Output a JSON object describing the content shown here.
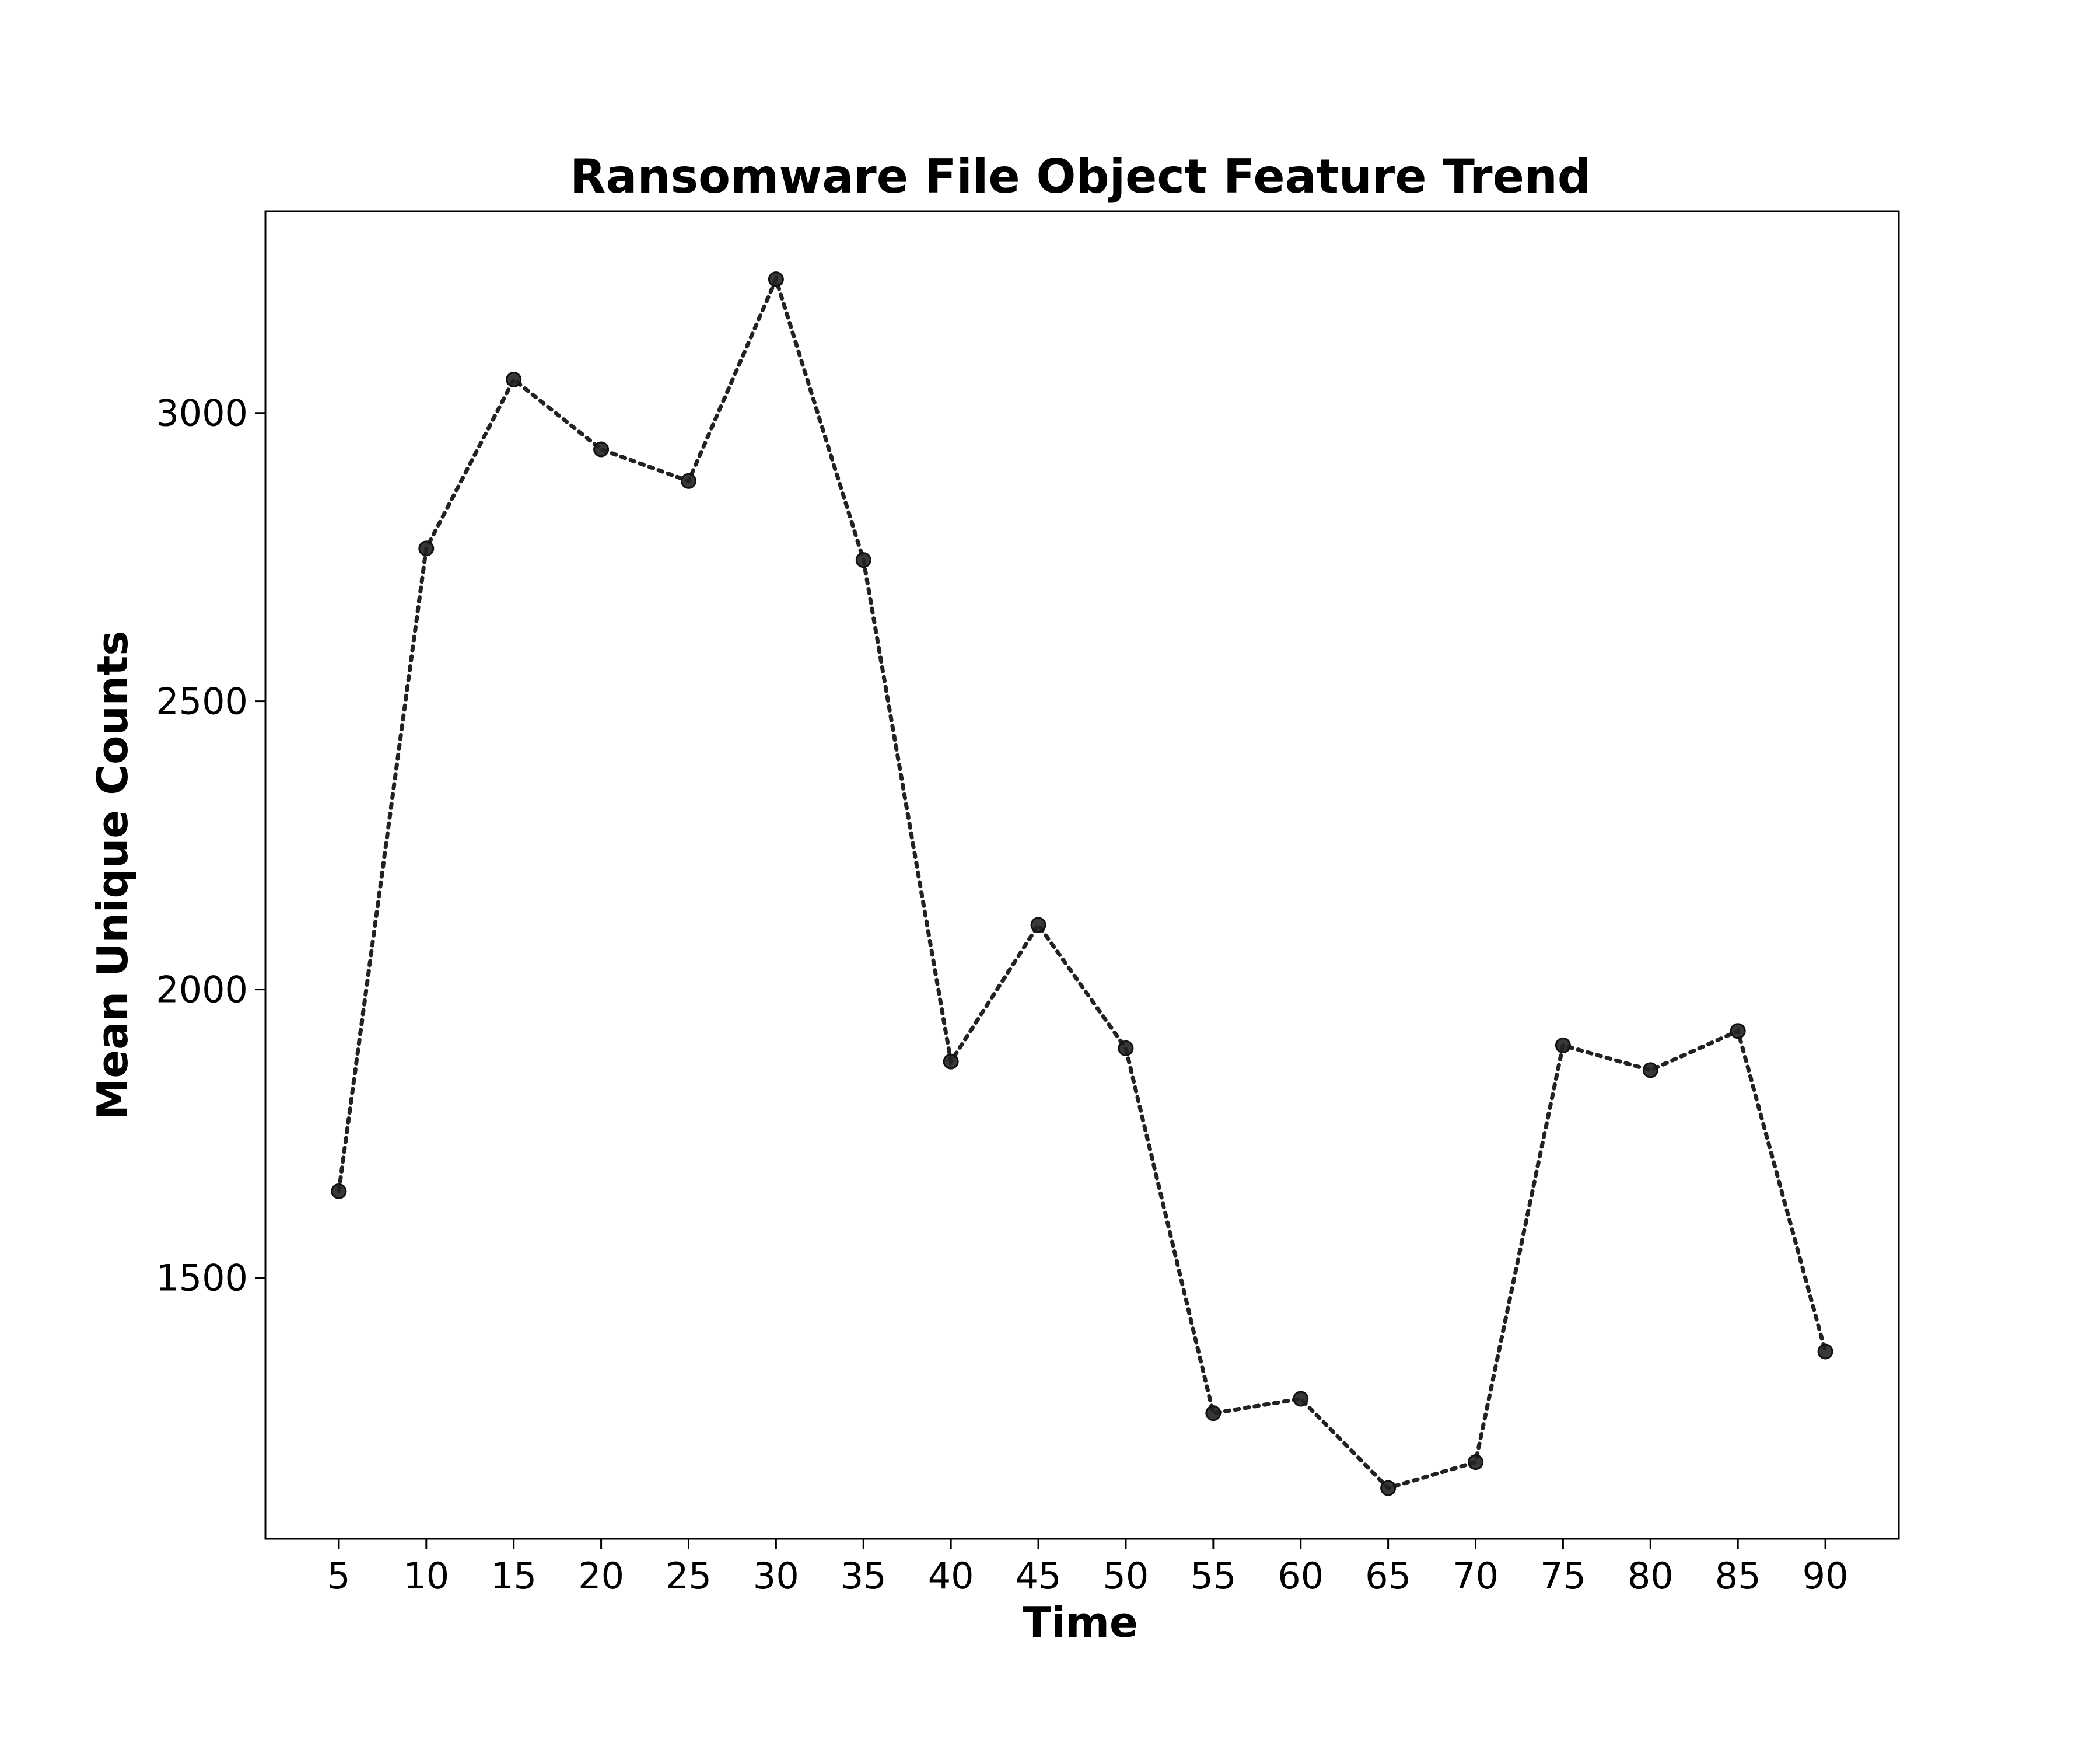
{
  "chart_data": {
    "type": "line",
    "title": "Ransomware File Object Feature Trend",
    "xlabel": "Time",
    "ylabel": "Mean Unique Counts",
    "x": [
      5,
      10,
      15,
      20,
      25,
      30,
      35,
      40,
      45,
      50,
      55,
      60,
      65,
      70,
      75,
      80,
      85,
      90
    ],
    "y": [
      1650,
      2765,
      3058,
      2937,
      2882,
      3232,
      2745,
      1875,
      2112,
      1898,
      1265,
      1290,
      1135,
      1180,
      1903,
      1860,
      1928,
      1372
    ],
    "xticks": [
      5,
      10,
      15,
      20,
      25,
      30,
      35,
      40,
      45,
      50,
      55,
      60,
      65,
      70,
      75,
      80,
      85,
      90
    ],
    "yticks": [
      1500,
      2000,
      2500,
      3000
    ],
    "xlim": [
      0.8,
      94.2
    ],
    "ylim": [
      1047,
      3350
    ],
    "line_style": "dotted",
    "marker": "circle",
    "color": "#222222",
    "grid": false,
    "legend": "none"
  }
}
